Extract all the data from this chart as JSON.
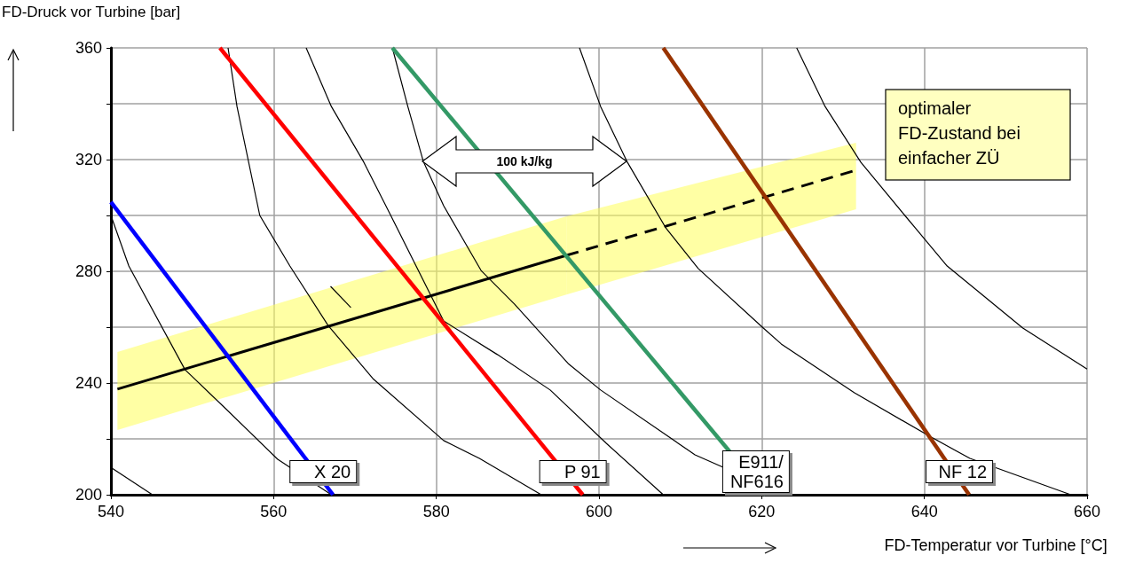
{
  "chart_data": {
    "type": "line",
    "xlabel": "FD-Temperatur vor Turbine [°C]",
    "ylabel": "FD-Druck vor Turbine [bar]",
    "xlim": [
      540,
      660
    ],
    "xticks": [
      540,
      560,
      580,
      600,
      620,
      640,
      660
    ],
    "ylim": [
      200,
      360
    ],
    "yticks": [
      200,
      {
        "value": 220,
        "label": null
      },
      240,
      {
        "value": 260,
        "label": null
      },
      280,
      {
        "value": 300,
        "label": null
      },
      320,
      {
        "value": 340,
        "label": null
      },
      360
    ],
    "grid": true,
    "legend": false,
    "marker": "none",
    "series": [
      {
        "color": "#000000",
        "x": [
          540,
          545.1
        ],
        "values": [
          209.8,
          200
        ]
      },
      {
        "color": "#000000",
        "x": [
          540,
          542.2,
          549.1,
          554.0,
          560.5,
          567.1
        ],
        "values": [
          300.0,
          281.9,
          244.8,
          231.1,
          212.7,
          200
        ]
      },
      {
        "color": "#000000",
        "x": [
          554.4,
          555.5,
          558.3,
          562.0,
          566.7,
          572.2,
          580.9,
          585.3,
          592.9
        ],
        "values": [
          360,
          339.0,
          300.0,
          281.9,
          260.6,
          241.6,
          219.4,
          213.0,
          200
        ]
      },
      {
        "color": "#000000",
        "x": [
          564.0,
          567.1,
          571.1,
          574.4,
          580.9,
          587.5,
          594.0,
          600.9,
          607.9
        ],
        "values": [
          360,
          339.0,
          319.0,
          300.0,
          262.2,
          250.2,
          237.5,
          218.4,
          200
        ]
      },
      {
        "color": "#000000",
        "x": [
          574.6,
          576.5,
          578.4,
          580.9,
          585.5,
          589.6,
          596.2,
          600.2,
          611.8,
          622.9
        ],
        "values": [
          360,
          339.0,
          319.4,
          303.5,
          280.3,
          268.3,
          247.0,
          237.5,
          214.3,
          200
        ]
      },
      {
        "color": "#000000",
        "x": [
          597.6,
          600.2,
          603.5,
          608.2,
          612.2,
          620.2,
          622.4,
          631.4,
          640.6,
          645.6,
          658.0
        ],
        "values": [
          360,
          339.0,
          319.0,
          295.6,
          281.0,
          259.7,
          254.0,
          236.5,
          221.0,
          213.0,
          200
        ]
      },
      {
        "color": "#000000",
        "x": [
          624.3,
          627.8,
          632.2,
          637.6,
          642.8,
          652.1,
          660
        ],
        "values": [
          360,
          339.0,
          319.0,
          300.0,
          281.9,
          259.7,
          245
        ]
      },
      {
        "color": "#000000",
        "x": [
          567.0,
          569.5
        ],
        "values": [
          274.6,
          267.0
        ]
      },
      {
        "color": "#000000",
        "line_style": "solid",
        "x": [
          540.8,
          596.0
        ],
        "values": [
          237.8,
          285.7
        ],
        "lower": [
          223.2,
          271.7
        ],
        "upper": [
          251.1,
          299.7
        ]
      },
      {
        "color": "#000000",
        "line_style": "dashed",
        "x": [
          596.0,
          631.6
        ],
        "values": [
          285.7,
          316.2
        ],
        "lower": [
          271.7,
          302.2
        ],
        "upper": [
          299.7,
          326
        ]
      },
      {
        "name": "X 20",
        "color": "#0000ff",
        "x": [
          540,
          567.3
        ],
        "values": [
          304.8,
          200
        ]
      },
      {
        "name": "P 91",
        "color": "#ff0000",
        "x": [
          553.4,
          598.0
        ],
        "values": [
          360,
          200
        ]
      },
      {
        "name": "E911/NF616",
        "color": "#339966",
        "x": [
          574.6,
          620.5
        ],
        "values": [
          360,
          200
        ]
      },
      {
        "name": "NF 12",
        "color": "#993300",
        "x": [
          607.9,
          645.5
        ],
        "values": [
          360,
          200
        ]
      }
    ],
    "annotations": [
      "100 kJ/kg",
      "optimaler FD-Zustand bei einfacher ZÜ"
    ]
  }
}
